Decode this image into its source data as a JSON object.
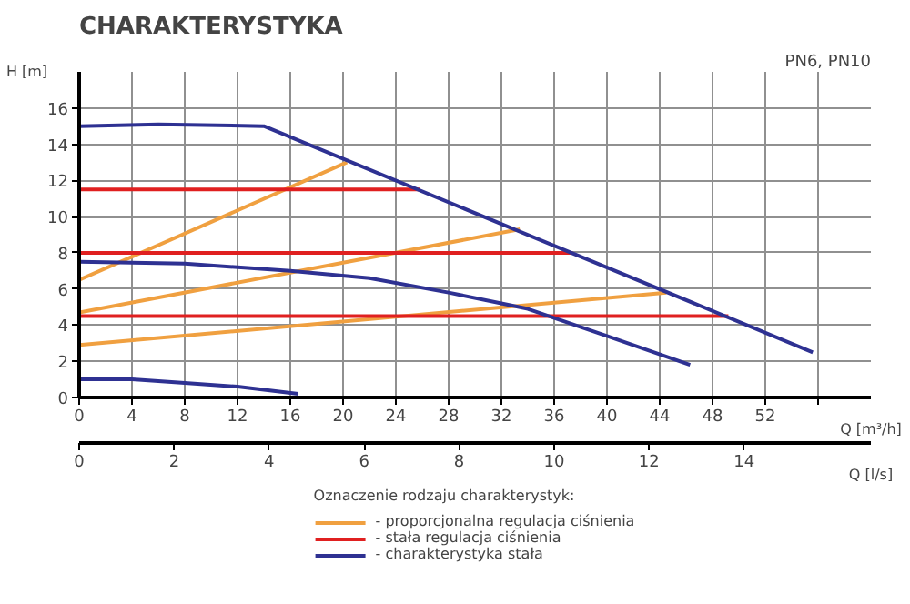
{
  "chart_data": {
    "type": "line",
    "title": "CHARAKTERYSTYKA",
    "annotations": [
      "PN6, PN10"
    ],
    "xlabel": "Q [m³/h]",
    "ylabel": "H [m]",
    "x2label": "Q [l/s]",
    "legend_title": "Oznaczenie rodzaju charakterystyk:",
    "legend": "bottom",
    "grid": true,
    "marker": "none",
    "line_style": "solid",
    "xlim": [
      0,
      60
    ],
    "xticks": [
      0,
      4,
      8,
      12,
      16,
      20,
      24,
      28,
      32,
      36,
      40,
      44,
      48,
      52,
      {
        "value": 56,
        "label": null
      }
    ],
    "ylim": [
      0,
      18
    ],
    "yticks": [
      0,
      2,
      4,
      6,
      8,
      10,
      12,
      14,
      16
    ],
    "x2lim": [
      0,
      16.67
    ],
    "x2ticks": [
      0,
      2,
      4,
      6,
      8,
      10,
      12,
      14
    ],
    "series": [
      {
        "name": "- proporcjonalna regulacja ciśnienia",
        "color": "#f0a040",
        "x": [
          0,
          20.3
        ],
        "values": [
          6.5,
          13.0
        ]
      },
      {
        "color": "#f0a040",
        "x": [
          0,
          33.4
        ],
        "values": [
          4.7,
          9.3
        ]
      },
      {
        "color": "#f0a040",
        "x": [
          0,
          44.5
        ],
        "values": [
          2.9,
          5.8
        ]
      },
      {
        "name": "- stała regulacja ciśnienia",
        "color": "#e02020",
        "x": [
          0,
          25.8
        ],
        "values": [
          11.5,
          11.5
        ]
      },
      {
        "color": "#e02020",
        "x": [
          0,
          37.4
        ],
        "values": [
          8.0,
          8.0
        ]
      },
      {
        "color": "#e02020",
        "x": [
          0,
          49.2
        ],
        "values": [
          4.5,
          4.5
        ]
      },
      {
        "name": "- charakterystyka stała",
        "color": "#2e3192",
        "x": [
          0,
          6,
          14,
          55.6
        ],
        "values": [
          15.0,
          15.1,
          15.0,
          2.5
        ]
      },
      {
        "color": "#2e3192",
        "x": [
          0,
          8,
          16,
          22,
          28,
          32,
          34,
          40,
          46.3
        ],
        "values": [
          7.5,
          7.4,
          7.0,
          6.6,
          5.8,
          5.2,
          4.9,
          3.4,
          1.8
        ]
      },
      {
        "color": "#2e3192",
        "x": [
          0,
          4,
          8,
          12,
          16.6
        ],
        "values": [
          1.0,
          1.0,
          0.8,
          0.6,
          0.2
        ]
      }
    ]
  }
}
